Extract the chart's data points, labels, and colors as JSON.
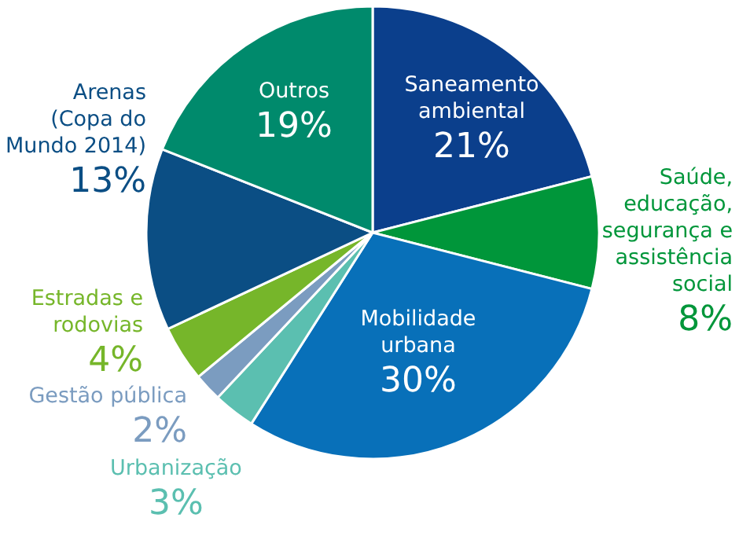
{
  "chart_data": {
    "type": "pie",
    "categories": [
      "Saneamento ambiental",
      "Saúde, educação, segurança e assistência social",
      "Mobilidade urbana",
      "Urbanização",
      "Gestão pública",
      "Estradas e rodovias",
      "Arenas (Copa do Mundo 2014)",
      "Outros"
    ],
    "values": [
      21,
      8,
      30,
      3,
      2,
      4,
      13,
      19
    ],
    "value_labels": [
      "21%",
      "8%",
      "30%",
      "3%",
      "2%",
      "4%",
      "13%",
      "19%"
    ],
    "colors": [
      "#0b3f8c",
      "#00963a",
      "#0870b9",
      "#5bbfb0",
      "#7b9cc0",
      "#76b62a",
      "#0b4e84",
      "#008a6c"
    ]
  }
}
